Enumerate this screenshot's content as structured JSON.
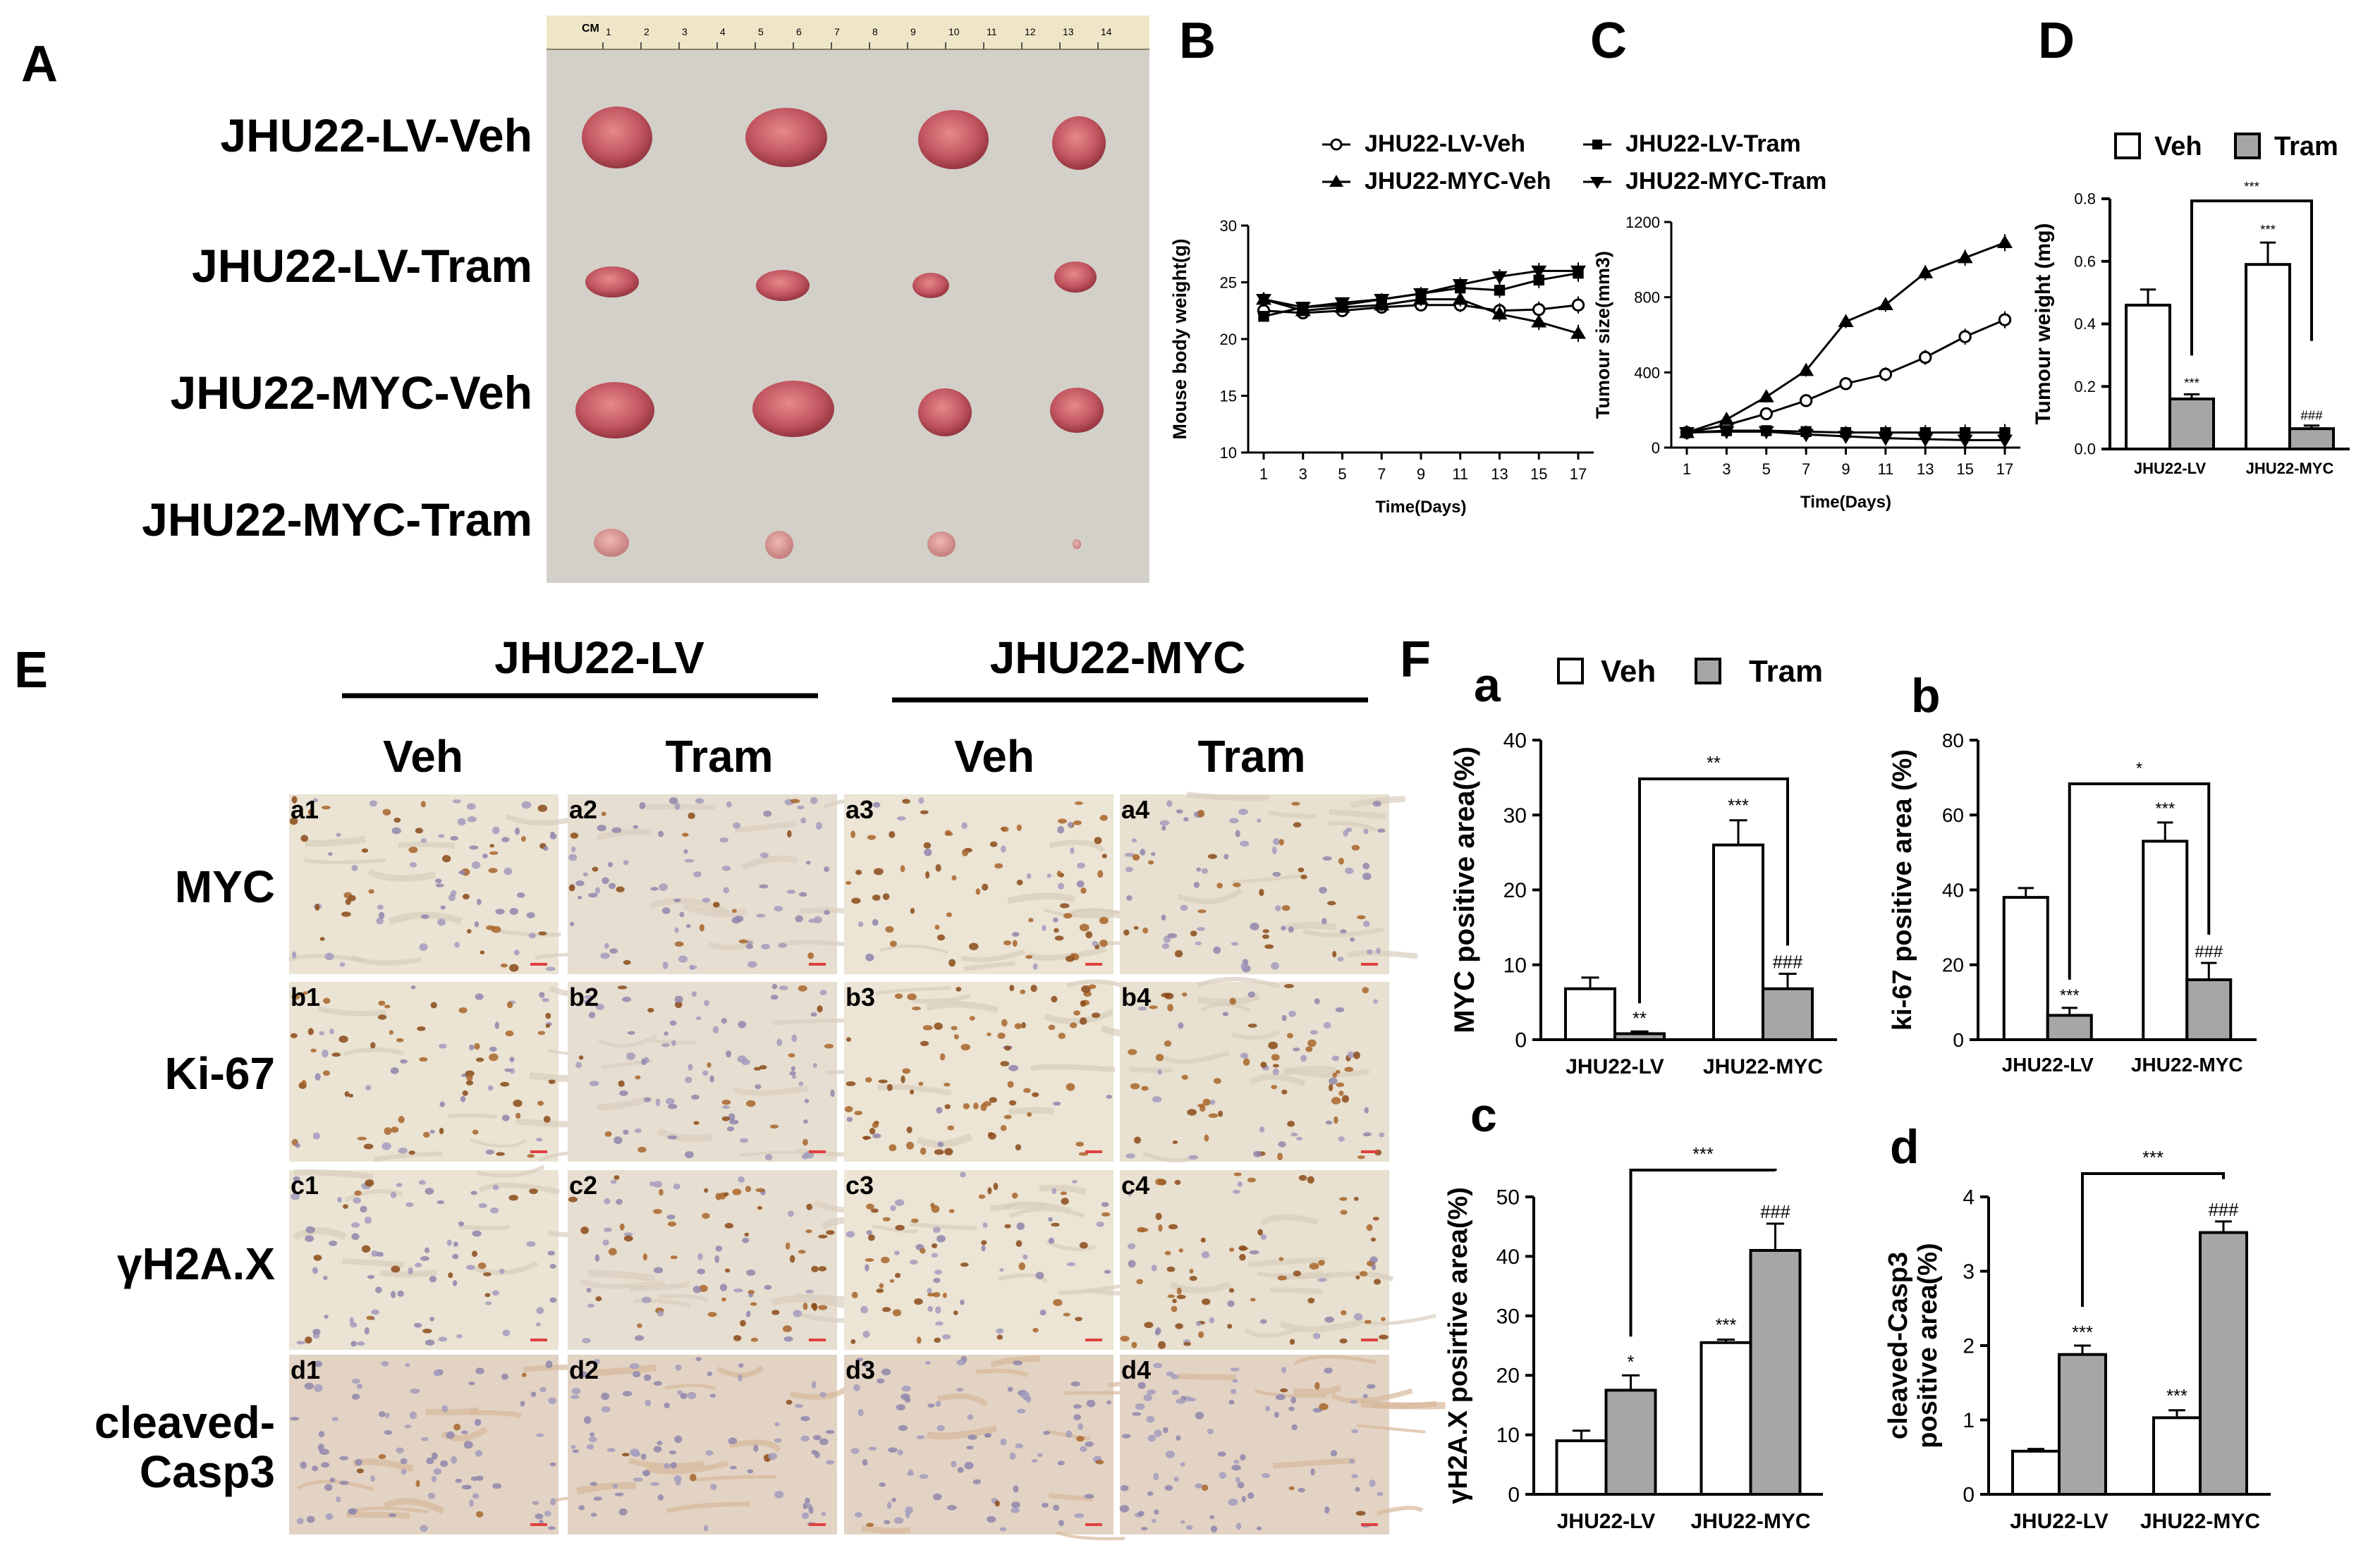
{
  "panelA": {
    "letter": "A",
    "rows": [
      "JHU22-LV-Veh",
      "JHU22-LV-Tram",
      "JHU22-MYC-Veh",
      "JHU22-MYC-Tram"
    ],
    "ruler_label": "CM",
    "ruler_ticks": [
      "1",
      "2",
      "3",
      "4",
      "5",
      "6",
      "7",
      "8",
      "9",
      "10",
      "11",
      "12",
      "13",
      "14"
    ]
  },
  "panelE": {
    "letter": "E",
    "groups": [
      "JHU22-LV",
      "JHU22-MYC"
    ],
    "columns": [
      "Veh",
      "Tram",
      "Veh",
      "Tram"
    ],
    "rows": [
      {
        "label": "MYC",
        "tiles": [
          "a1",
          "a2",
          "a3",
          "a4"
        ]
      },
      {
        "label": "Ki-67",
        "tiles": [
          "b1",
          "b2",
          "b3",
          "b4"
        ]
      },
      {
        "label": "γH2A.X",
        "tiles": [
          "c1",
          "c2",
          "c3",
          "c4"
        ]
      },
      {
        "label": "cleaved-",
        "label2": "Casp3",
        "tiles": [
          "d1",
          "d2",
          "d3",
          "d4"
        ]
      }
    ]
  },
  "legend_vt": {
    "veh": "Veh",
    "tram": "Tram"
  },
  "panelF_letter": "F",
  "chart_data": [
    {
      "id": "B",
      "type": "line",
      "letter": "B",
      "xlabel": "Time(Days)",
      "ylabel": "Mouse body weight(g)",
      "xticks": [
        1,
        3,
        5,
        7,
        9,
        11,
        13,
        15,
        17
      ],
      "ylim": [
        10,
        30
      ],
      "yticks": [
        10,
        15,
        20,
        25,
        30
      ],
      "series": [
        {
          "name": "JHU22-LV-Veh",
          "marker": "open-circle",
          "values": [
            22.5,
            22.3,
            22.5,
            22.8,
            23.0,
            23.0,
            22.5,
            22.6,
            23.0
          ]
        },
        {
          "name": "JHU22-MYC-Veh",
          "marker": "triangle-up",
          "values": [
            23.5,
            22.5,
            22.8,
            23.0,
            23.5,
            23.5,
            22.2,
            21.5,
            20.5
          ]
        },
        {
          "name": "JHU22-LV-Tram",
          "marker": "square",
          "values": [
            22.0,
            22.8,
            23.0,
            23.5,
            24.0,
            24.5,
            24.3,
            25.2,
            25.8
          ]
        },
        {
          "name": "JHU22-MYC-Tram",
          "marker": "triangle-down",
          "values": [
            23.5,
            22.8,
            23.2,
            23.5,
            24.0,
            24.8,
            25.5,
            26.0,
            26.0
          ]
        }
      ]
    },
    {
      "id": "C",
      "type": "line",
      "letter": "C",
      "xlabel": "Time(Days)",
      "ylabel": "Tumour size(mm3)",
      "xticks": [
        1,
        3,
        5,
        7,
        9,
        11,
        13,
        15,
        17
      ],
      "ylim": [
        0,
        1200
      ],
      "yticks": [
        0,
        400,
        800,
        1200
      ],
      "series": [
        {
          "name": "JHU22-LV-Veh",
          "marker": "open-circle",
          "values": [
            80,
            120,
            180,
            250,
            340,
            390,
            480,
            590,
            680
          ]
        },
        {
          "name": "JHU22-MYC-Veh",
          "marker": "triangle-up",
          "values": [
            80,
            150,
            270,
            410,
            670,
            760,
            930,
            1010,
            1090
          ]
        },
        {
          "name": "JHU22-LV-Tram",
          "marker": "square",
          "values": [
            80,
            90,
            90,
            85,
            80,
            80,
            80,
            80,
            80
          ]
        },
        {
          "name": "JHU22-MYC-Tram",
          "marker": "triangle-down",
          "values": [
            80,
            85,
            85,
            70,
            60,
            50,
            45,
            40,
            40
          ]
        }
      ]
    },
    {
      "id": "D",
      "type": "bar",
      "letter": "D",
      "categories": [
        "JHU22-LV",
        "JHU22-MYC"
      ],
      "ylabel": "Tumour weight (mg)",
      "ylim": [
        0,
        0.8
      ],
      "yticks": [
        "0.0",
        "0.2",
        "0.4",
        "0.6",
        "0.8"
      ],
      "series": [
        {
          "name": "Veh",
          "values": [
            0.46,
            0.59
          ],
          "errors": [
            0.05,
            0.07
          ]
        },
        {
          "name": "Tram",
          "values": [
            0.16,
            0.065
          ],
          "errors": [
            0.015,
            0.01
          ]
        }
      ],
      "annotations": {
        "tram": [
          "***",
          "###"
        ],
        "veh2": "***",
        "bracket": "***"
      }
    },
    {
      "id": "Fa",
      "type": "bar",
      "letter": "a",
      "categories": [
        "JHU22-LV",
        "JHU22-MYC"
      ],
      "ylabel": "MYC positive area(%)",
      "ylim": [
        0,
        40
      ],
      "yticks": [
        "0",
        "10",
        "20",
        "30",
        "40"
      ],
      "series": [
        {
          "name": "Veh",
          "values": [
            6.8,
            26.0
          ],
          "errors": [
            1.5,
            3.3
          ]
        },
        {
          "name": "Tram",
          "values": [
            0.8,
            6.8
          ],
          "errors": [
            0.3,
            2.0
          ]
        }
      ],
      "annotations": {
        "tram": [
          "**",
          "###"
        ],
        "veh2": "***",
        "bracket": "**"
      }
    },
    {
      "id": "Fb",
      "type": "bar",
      "letter": "b",
      "categories": [
        "JHU22-LV",
        "JHU22-MYC"
      ],
      "ylabel": "ki-67 positive area (%)",
      "ylim": [
        0,
        80
      ],
      "yticks": [
        "0",
        "20",
        "40",
        "60",
        "80"
      ],
      "series": [
        {
          "name": "Veh",
          "values": [
            38,
            53
          ],
          "errors": [
            2.5,
            5
          ]
        },
        {
          "name": "Tram",
          "values": [
            6.5,
            16
          ],
          "errors": [
            2,
            4.5
          ]
        }
      ],
      "annotations": {
        "tram": [
          "***",
          "###"
        ],
        "veh2": "***",
        "bracket": "*"
      }
    },
    {
      "id": "Fc",
      "type": "bar",
      "letter": "c",
      "categories": [
        "JHU22-LV",
        "JHU22-MYC"
      ],
      "ylabel": "γH2A.X posirtive area(%)",
      "ylim": [
        0,
        50
      ],
      "yticks": [
        "0",
        "10",
        "20",
        "30",
        "40",
        "50"
      ],
      "series": [
        {
          "name": "Veh",
          "values": [
            9.0,
            25.5
          ],
          "errors": [
            1.7,
            0.5
          ]
        },
        {
          "name": "Tram",
          "values": [
            17.5,
            41.0
          ],
          "errors": [
            2.5,
            4.5
          ]
        }
      ],
      "annotations": {
        "tram": [
          "*",
          "###"
        ],
        "veh2": "***",
        "bracket": "***"
      }
    },
    {
      "id": "Fd",
      "type": "bar",
      "letter": "d",
      "categories": [
        "JHU22-LV",
        "JHU22-MYC"
      ],
      "ylabel": "cleaved-Casp3",
      "ylabel2": "positive area(%)",
      "ylim": [
        0,
        4
      ],
      "yticks": [
        "0",
        "1",
        "2",
        "3",
        "4"
      ],
      "series": [
        {
          "name": "Veh",
          "values": [
            0.58,
            1.03
          ],
          "errors": [
            0.03,
            0.1
          ]
        },
        {
          "name": "Tram",
          "values": [
            1.88,
            3.52
          ],
          "errors": [
            0.12,
            0.15
          ]
        }
      ],
      "annotations": {
        "tram": [
          "***",
          "###"
        ],
        "veh2": "***",
        "bracket": "***"
      }
    }
  ]
}
